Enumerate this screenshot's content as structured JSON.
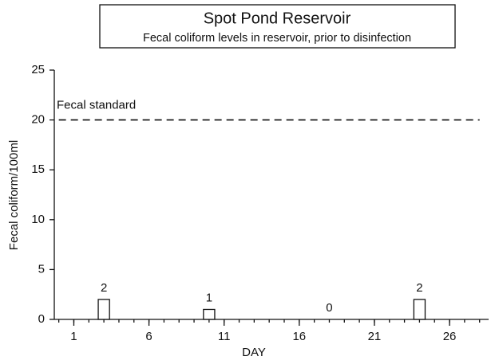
{
  "chart_data": {
    "type": "bar",
    "title": "Spot Pond Reservoir",
    "subtitle": "Fecal coliform levels in reservoir, prior to disinfection",
    "x_label": "DAY",
    "y_label": "Fecal coliform/100ml",
    "x": [
      3,
      10,
      18,
      24
    ],
    "values": [
      2,
      1,
      0,
      2
    ],
    "color": "#ffffff",
    "xlim": [
      -0.3,
      28.6
    ],
    "xticks": [
      1,
      6,
      11,
      16,
      21,
      26
    ],
    "x_minor_ticks": [
      0,
      1,
      2,
      3,
      4,
      5,
      6,
      7,
      8,
      9,
      10,
      11,
      12,
      13,
      14,
      15,
      16,
      17,
      18,
      19,
      20,
      21,
      22,
      23,
      24,
      25,
      26,
      27,
      28
    ],
    "ylim": [
      0,
      25
    ],
    "yticks": [
      0,
      5,
      10,
      15,
      20,
      25
    ],
    "reference_line": {
      "value": 20,
      "label": "Fecal standard"
    },
    "grid": false
  }
}
